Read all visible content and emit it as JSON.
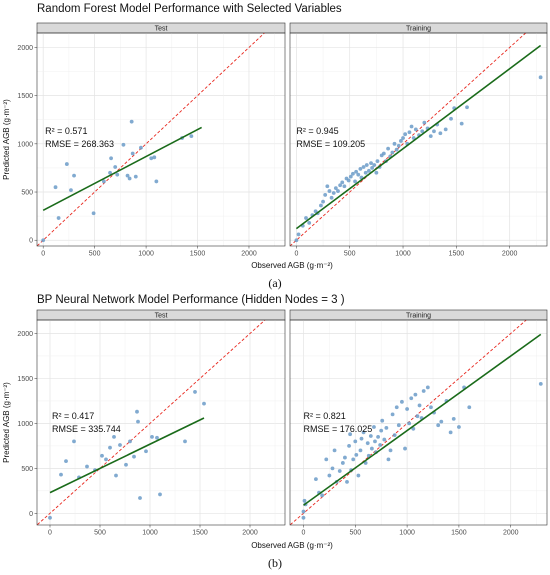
{
  "chart_data": [
    {
      "type": "scatter",
      "title": "Random Forest Model Performance with Selected Variables",
      "caption": "(a)",
      "xlabel": "Observed AGB (g·m⁻²)",
      "ylabel": "Predicted AGB (g·m⁻²)",
      "xlim": [
        -60,
        2350
      ],
      "ylim": [
        -60,
        2150
      ],
      "xticks": [
        0,
        500,
        1000,
        1500,
        2000
      ],
      "yticks": [
        0,
        500,
        1000,
        1500,
        2000
      ],
      "grid": true,
      "point_color": "#6b9bc8",
      "fit_color": "#1a6b1a",
      "identity_color": "#e8281f",
      "panels": [
        {
          "name": "Test",
          "r2": "R² = 0.571",
          "rmse": "RMSE = 268.363",
          "fit": {
            "x": [
              0,
              1540
            ],
            "y": [
              310,
              1170
            ]
          },
          "points": [
            [
              0,
              0
            ],
            [
              120,
              550
            ],
            [
              150,
              230
            ],
            [
              230,
              790
            ],
            [
              270,
              520
            ],
            [
              300,
              670
            ],
            [
              490,
              280
            ],
            [
              590,
              610
            ],
            [
              650,
              700
            ],
            [
              660,
              850
            ],
            [
              700,
              760
            ],
            [
              720,
              680
            ],
            [
              780,
              990
            ],
            [
              820,
              670
            ],
            [
              840,
              640
            ],
            [
              860,
              1230
            ],
            [
              870,
              900
            ],
            [
              900,
              660
            ],
            [
              950,
              960
            ],
            [
              1050,
              850
            ],
            [
              1080,
              860
            ],
            [
              1100,
              610
            ],
            [
              1350,
              1060
            ],
            [
              1440,
              1080
            ]
          ]
        },
        {
          "name": "Training",
          "r2": "R² = 0.945",
          "rmse": "RMSE = 109.205",
          "fit": {
            "x": [
              0,
              2290
            ],
            "y": [
              120,
              2020
            ]
          },
          "points": [
            [
              0,
              0
            ],
            [
              20,
              60
            ],
            [
              60,
              150
            ],
            [
              90,
              230
            ],
            [
              120,
              180
            ],
            [
              150,
              260
            ],
            [
              180,
              300
            ],
            [
              200,
              280
            ],
            [
              230,
              360
            ],
            [
              250,
              400
            ],
            [
              270,
              470
            ],
            [
              290,
              560
            ],
            [
              310,
              510
            ],
            [
              330,
              440
            ],
            [
              350,
              490
            ],
            [
              370,
              540
            ],
            [
              390,
              510
            ],
            [
              410,
              570
            ],
            [
              430,
              600
            ],
            [
              450,
              560
            ],
            [
              470,
              640
            ],
            [
              490,
              620
            ],
            [
              510,
              660
            ],
            [
              530,
              690
            ],
            [
              550,
              610
            ],
            [
              560,
              710
            ],
            [
              580,
              680
            ],
            [
              600,
              740
            ],
            [
              610,
              650
            ],
            [
              630,
              760
            ],
            [
              650,
              700
            ],
            [
              660,
              780
            ],
            [
              680,
              720
            ],
            [
              700,
              800
            ],
            [
              710,
              750
            ],
            [
              730,
              780
            ],
            [
              750,
              700
            ],
            [
              760,
              820
            ],
            [
              780,
              760
            ],
            [
              800,
              880
            ],
            [
              820,
              900
            ],
            [
              840,
              820
            ],
            [
              860,
              950
            ],
            [
              880,
              870
            ],
            [
              900,
              910
            ],
            [
              920,
              1000
            ],
            [
              940,
              940
            ],
            [
              960,
              980
            ],
            [
              980,
              1030
            ],
            [
              1000,
              1060
            ],
            [
              1020,
              1100
            ],
            [
              1040,
              1000
            ],
            [
              1060,
              1120
            ],
            [
              1080,
              1180
            ],
            [
              1100,
              1060
            ],
            [
              1120,
              1150
            ],
            [
              1150,
              1090
            ],
            [
              1180,
              1130
            ],
            [
              1200,
              1220
            ],
            [
              1230,
              1160
            ],
            [
              1260,
              1080
            ],
            [
              1290,
              1130
            ],
            [
              1320,
              1200
            ],
            [
              1350,
              1110
            ],
            [
              1400,
              1150
            ],
            [
              1450,
              1260
            ],
            [
              1480,
              1370
            ],
            [
              1550,
              1210
            ],
            [
              1600,
              1380
            ],
            [
              2290,
              1690
            ]
          ]
        }
      ]
    },
    {
      "type": "scatter",
      "title": "BP Neural Network Model Performance (Hidden Nodes = 3 )",
      "caption": "(b)",
      "xlabel": "Observed AGB (g·m⁻²)",
      "ylabel": "Predicted AGB (g·m⁻²)",
      "xlim": [
        -130,
        2350
      ],
      "ylim": [
        -130,
        2150
      ],
      "xticks": [
        0,
        500,
        1000,
        1500,
        2000
      ],
      "yticks": [
        0,
        500,
        1000,
        1500,
        2000
      ],
      "grid": true,
      "point_color": "#6b9bc8",
      "fit_color": "#1a6b1a",
      "identity_color": "#e8281f",
      "panels": [
        {
          "name": "Test",
          "r2": "R² = 0.417",
          "rmse": "RMSE = 335.744",
          "fit": {
            "x": [
              0,
              1540
            ],
            "y": [
              230,
              1060
            ]
          },
          "points": [
            [
              0,
              -50
            ],
            [
              110,
              430
            ],
            [
              160,
              580
            ],
            [
              240,
              800
            ],
            [
              290,
              400
            ],
            [
              370,
              520
            ],
            [
              450,
              480
            ],
            [
              520,
              640
            ],
            [
              560,
              600
            ],
            [
              600,
              730
            ],
            [
              640,
              850
            ],
            [
              660,
              420
            ],
            [
              700,
              760
            ],
            [
              760,
              540
            ],
            [
              800,
              800
            ],
            [
              840,
              630
            ],
            [
              870,
              1130
            ],
            [
              880,
              1020
            ],
            [
              900,
              170
            ],
            [
              960,
              690
            ],
            [
              1020,
              850
            ],
            [
              1070,
              840
            ],
            [
              1100,
              210
            ],
            [
              1350,
              800
            ],
            [
              1450,
              1350
            ],
            [
              1540,
              1220
            ]
          ]
        },
        {
          "name": "Training",
          "r2": "R² = 0.821",
          "rmse": "RMSE = 176.025",
          "fit": {
            "x": [
              0,
              2290
            ],
            "y": [
              90,
              1990
            ]
          },
          "points": [
            [
              0,
              -50
            ],
            [
              0,
              20
            ],
            [
              10,
              140
            ],
            [
              20,
              100
            ],
            [
              120,
              380
            ],
            [
              150,
              230
            ],
            [
              180,
              200
            ],
            [
              220,
              600
            ],
            [
              250,
              420
            ],
            [
              280,
              500
            ],
            [
              300,
              700
            ],
            [
              320,
              350
            ],
            [
              350,
              470
            ],
            [
              380,
              560
            ],
            [
              400,
              620
            ],
            [
              420,
              350
            ],
            [
              440,
              750
            ],
            [
              450,
              880
            ],
            [
              460,
              480
            ],
            [
              480,
              600
            ],
            [
              500,
              800
            ],
            [
              510,
              650
            ],
            [
              530,
              420
            ],
            [
              550,
              700
            ],
            [
              560,
              830
            ],
            [
              580,
              900
            ],
            [
              600,
              560
            ],
            [
              620,
              780
            ],
            [
              630,
              640
            ],
            [
              650,
              860
            ],
            [
              660,
              720
            ],
            [
              680,
              960
            ],
            [
              690,
              800
            ],
            [
              700,
              680
            ],
            [
              720,
              850
            ],
            [
              740,
              760
            ],
            [
              750,
              920
            ],
            [
              760,
              1030
            ],
            [
              780,
              820
            ],
            [
              800,
              950
            ],
            [
              820,
              600
            ],
            [
              840,
              700
            ],
            [
              860,
              1100
            ],
            [
              880,
              870
            ],
            [
              900,
              1180
            ],
            [
              920,
              980
            ],
            [
              950,
              1240
            ],
            [
              980,
              720
            ],
            [
              1000,
              1160
            ],
            [
              1020,
              1000
            ],
            [
              1040,
              1280
            ],
            [
              1060,
              940
            ],
            [
              1080,
              1320
            ],
            [
              1100,
              1080
            ],
            [
              1120,
              1200
            ],
            [
              1140,
              1060
            ],
            [
              1160,
              1360
            ],
            [
              1200,
              1400
            ],
            [
              1230,
              1180
            ],
            [
              1260,
              1120
            ],
            [
              1300,
              980
            ],
            [
              1330,
              1020
            ],
            [
              1380,
              1250
            ],
            [
              1420,
              900
            ],
            [
              1450,
              1050
            ],
            [
              1500,
              960
            ],
            [
              1550,
              1400
            ],
            [
              1600,
              1180
            ],
            [
              2290,
              1440
            ]
          ]
        }
      ]
    }
  ]
}
